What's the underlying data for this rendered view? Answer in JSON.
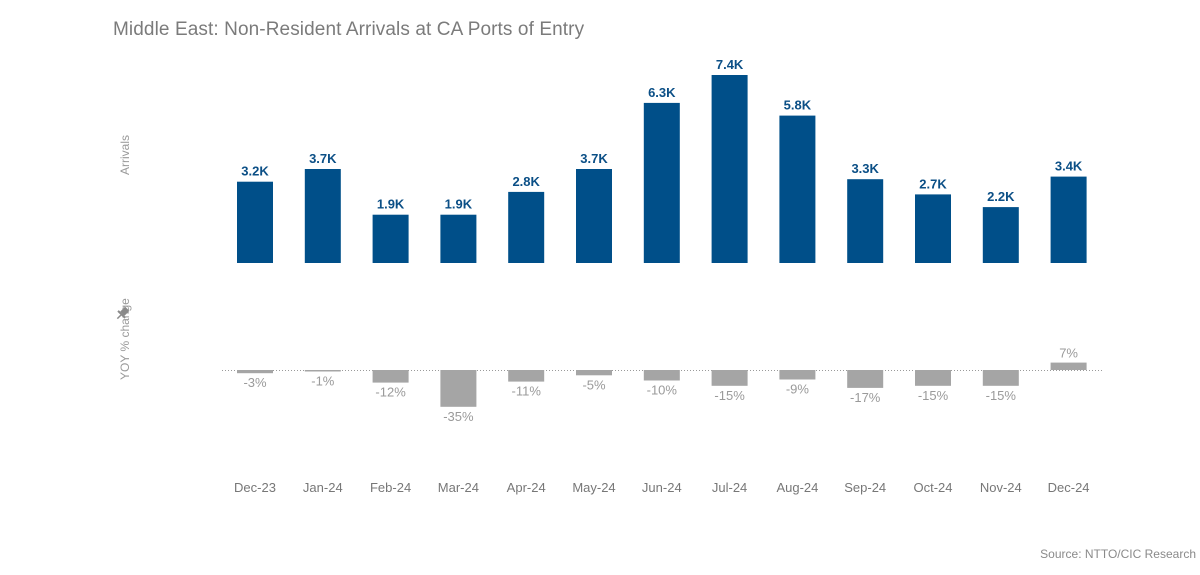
{
  "title": "Middle East: Non-Resident Arrivals at CA Ports of Entry",
  "source": "Source: NTTO/CIC Research",
  "pin_icon": "pin-icon",
  "colors": {
    "arrivals_bar": "#004f89",
    "yoy_bar": "#a5a5a5",
    "title": "#7b7b7b"
  },
  "chart_data": [
    {
      "type": "bar",
      "ylabel": "Arrivals",
      "categories": [
        "Dec-23",
        "Jan-24",
        "Feb-24",
        "Mar-24",
        "Apr-24",
        "May-24",
        "Jun-24",
        "Jul-24",
        "Aug-24",
        "Sep-24",
        "Oct-24",
        "Nov-24",
        "Dec-24"
      ],
      "values": [
        3200,
        3700,
        1900,
        1900,
        2800,
        3700,
        6300,
        7400,
        5800,
        3300,
        2700,
        2200,
        3400
      ],
      "labels": [
        "3.2K",
        "3.7K",
        "1.9K",
        "1.9K",
        "2.8K",
        "3.7K",
        "6.3K",
        "7.4K",
        "5.8K",
        "3.3K",
        "2.7K",
        "2.2K",
        "3.4K"
      ]
    },
    {
      "type": "bar",
      "ylabel": "YOY % change",
      "categories": [
        "Dec-23",
        "Jan-24",
        "Feb-24",
        "Mar-24",
        "Apr-24",
        "May-24",
        "Jun-24",
        "Jul-24",
        "Aug-24",
        "Sep-24",
        "Oct-24",
        "Nov-24",
        "Dec-24"
      ],
      "values": [
        -3,
        -1,
        -12,
        -35,
        -11,
        -5,
        -10,
        -15,
        -9,
        -17,
        -15,
        -15,
        7
      ],
      "labels": [
        "-3%",
        "-1%",
        "-12%",
        "-35%",
        "-11%",
        "-5%",
        "-10%",
        "-15%",
        "-9%",
        "-17%",
        "-15%",
        "-15%",
        "7%"
      ],
      "zero_line": "dotted"
    }
  ]
}
